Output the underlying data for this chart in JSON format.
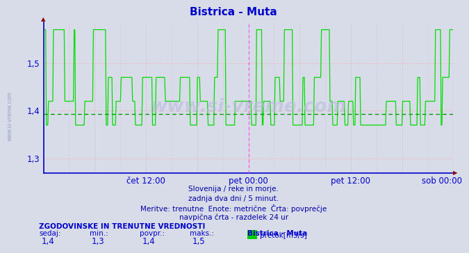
{
  "title": "Bistrica - Muta",
  "title_color": "#0000cc",
  "bg_color": "#d8dce8",
  "line_color": "#00dd00",
  "avg_line_color": "#009900",
  "grid_color_h": "#ff9999",
  "grid_color_v": "#ddbbbb",
  "vline_color": "#ff44ff",
  "axis_color": "#0000cc",
  "ytick_labels": [
    "1,3",
    "1,4",
    "1,5"
  ],
  "ytick_values": [
    1.3,
    1.4,
    1.5
  ],
  "ymin": 1.27,
  "ymax": 1.585,
  "avg_value": 1.393,
  "xtick_labels": [
    "čet 12:00",
    "pet 00:00",
    "pet 12:00",
    "sob 00:00"
  ],
  "xtick_pos": [
    0.25,
    0.5,
    0.75,
    0.9722
  ],
  "vline_x": [
    0.5,
    1.0
  ],
  "watermark": "www.si-vreme.com",
  "info_lines": [
    "Slovenija / reke in morje.",
    "zadnja dva dni / 5 minut.",
    "Meritve: trenutne  Enote: metrične  Črta: povprečje",
    "navpična črta - razdelek 24 ur"
  ],
  "stats_header": "ZGODOVINSKE IN TRENUTNE VREDNOSTI",
  "stats_labels": [
    "sedaj:",
    "min.:",
    "povpr.:",
    "maks.:"
  ],
  "stats_values": [
    "1,4",
    "1,3",
    "1,4",
    "1,5"
  ],
  "legend_label": "pretok[m3/s]",
  "legend_color": "#00cc00",
  "sidebar_text": "www.si-vreme.com",
  "num_points": 576
}
